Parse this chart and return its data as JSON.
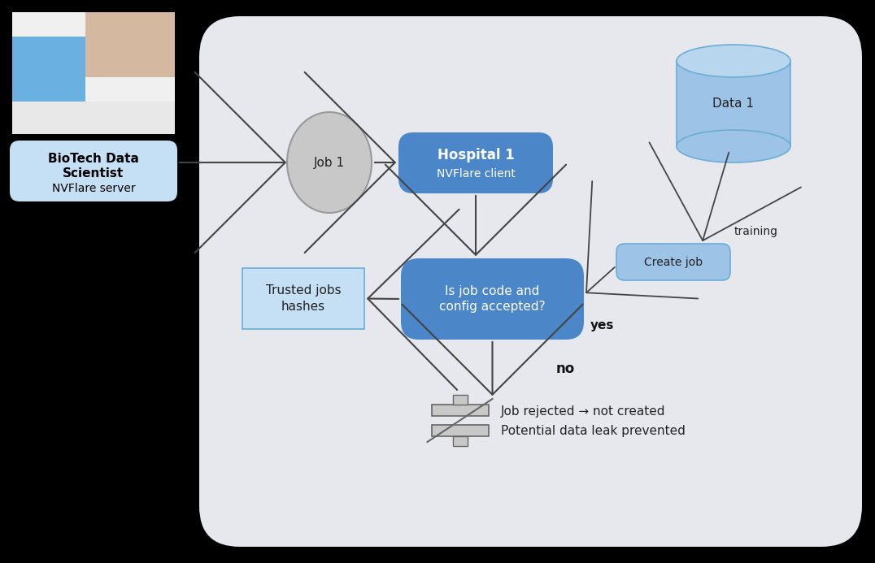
{
  "bg_color": "#000000",
  "panel_color": "#e6e8ee",
  "label_box_color": "#c5dff5",
  "label_box_bold": "BioTech Data\nScientist",
  "label_box_normal": "NVFlare server",
  "job1_color": "#c8c8c8",
  "job1_edge": "#999999",
  "hospital_box_color": "#4a86c8",
  "hospital_title": "Hospital 1",
  "hospital_sub": "NVFlare client",
  "data_cylinder_color": "#9dc3e6",
  "data_cylinder_top": "#b8d6ed",
  "data_cylinder_edge": "#6aaed6",
  "data_label": "Data 1",
  "create_job_color": "#9dc3e6",
  "create_job_edge": "#6aaed6",
  "create_job_label": "Create job",
  "question_box_color": "#4a86c8",
  "question_text": "Is job code and\nconfig accepted?",
  "trusted_box_color": "#c5dff5",
  "trusted_box_edge": "#6aaed6",
  "trusted_text": "Trusted jobs\nhashes",
  "yes_label": "yes",
  "no_label": "no",
  "training_label": "training",
  "reject_line1": "Job rejected → not created",
  "reject_line2": "Potential data leak prevented",
  "arrow_color": "#444444",
  "photo_color": "#dddddd"
}
